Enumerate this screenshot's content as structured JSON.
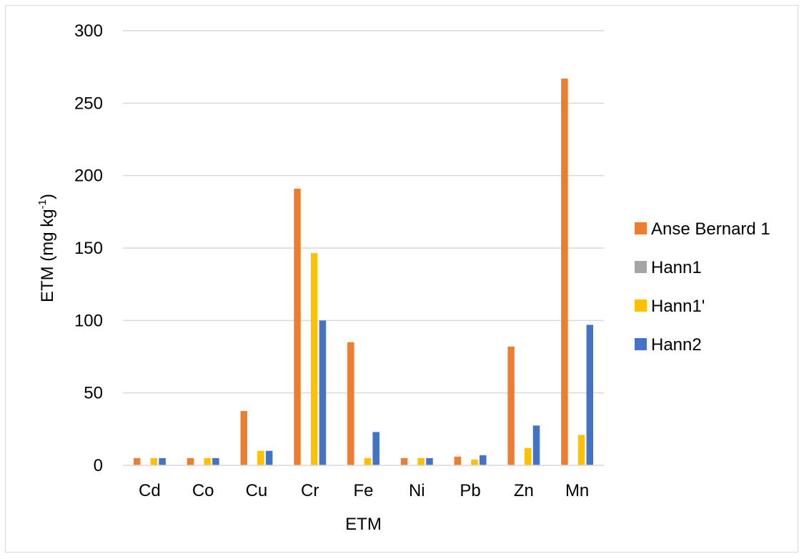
{
  "chart_data": {
    "type": "bar",
    "categories": [
      "Cd",
      "Co",
      "Cu",
      "Cr",
      "Fe",
      "Ni",
      "Pb",
      "Zn",
      "Mn"
    ],
    "series": [
      {
        "name": "Anse Bernard 1",
        "color": "#ED7D31",
        "values": [
          5,
          5,
          37.5,
          191,
          85,
          5,
          6,
          82,
          267
        ]
      },
      {
        "name": "Hann1",
        "color": "#A5A5A5",
        "values": [
          0,
          0,
          0,
          0,
          0,
          0,
          0,
          0,
          0
        ]
      },
      {
        "name": "Hann1'",
        "color": "#FFC000",
        "values": [
          5,
          5,
          10,
          146.5,
          5,
          5,
          4,
          12,
          21
        ]
      },
      {
        "name": "Hann2",
        "color": "#4472C4",
        "values": [
          5,
          5,
          10,
          100,
          23,
          5,
          7,
          27.5,
          97
        ]
      }
    ],
    "xlabel": "ETM",
    "ylabel": "ETM (mg kg-1)",
    "ylabel_main": "ETM (mg kg",
    "ylabel_sup": "-1",
    "ylabel_close": ")",
    "ylim": [
      0,
      300
    ],
    "yticks": [
      0,
      50,
      100,
      150,
      200,
      250,
      300
    ],
    "grid": true,
    "legend_position": "right"
  }
}
